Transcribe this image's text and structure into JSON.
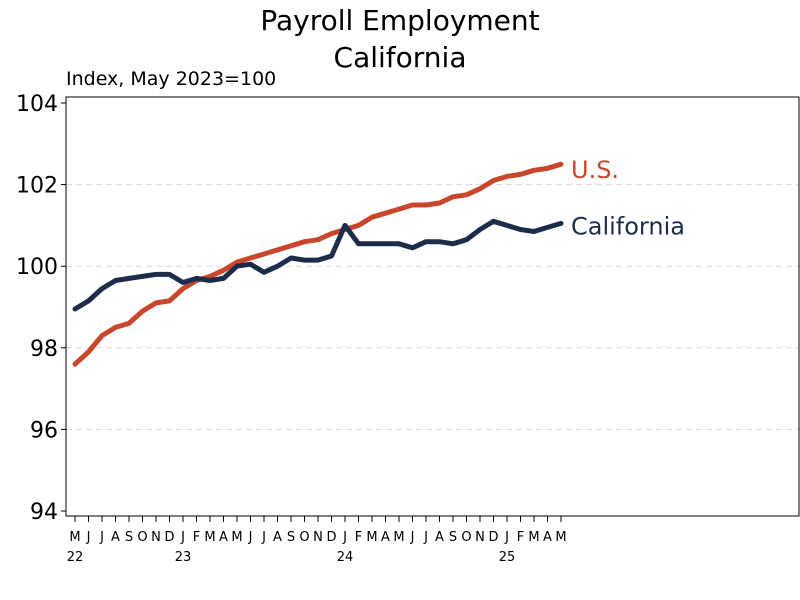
{
  "colors": {
    "us": "#c9462c",
    "california": "#1b2d4b",
    "grid": "#d9d9d9"
  },
  "chart_data": {
    "type": "line",
    "title": "Payroll Employment",
    "subtitle": "California",
    "ylabel": "Index, May 2023=100",
    "ylim": [
      94,
      104
    ],
    "yticks": [
      "94",
      "96",
      "98",
      "100",
      "102",
      "104"
    ],
    "grid": true,
    "x": [
      "May 2022",
      "Jun 2022",
      "Jul 2022",
      "Aug 2022",
      "Sep 2022",
      "Oct 2022",
      "Nov 2022",
      "Dec 2022",
      "Jan 2023",
      "Feb 2023",
      "Mar 2023",
      "Apr 2023",
      "May 2023",
      "Jun 2023",
      "Jul 2023",
      "Aug 2023",
      "Sep 2023",
      "Oct 2023",
      "Nov 2023",
      "Dec 2023",
      "Jan 2024",
      "Feb 2024",
      "Mar 2024",
      "Apr 2024",
      "May 2024",
      "Jun 2024",
      "Jul 2024",
      "Aug 2024",
      "Sep 2024",
      "Oct 2024",
      "Nov 2024",
      "Dec 2024",
      "Jan 2025",
      "Feb 2025",
      "Mar 2025",
      "Apr 2025",
      "May 2025"
    ],
    "month_labels": [
      "M",
      "J",
      "J",
      "A",
      "S",
      "O",
      "N",
      "D",
      "J",
      "F",
      "M",
      "A",
      "M",
      "J",
      "J",
      "A",
      "S",
      "O",
      "N",
      "D",
      "J",
      "F",
      "M",
      "A",
      "M",
      "J",
      "J",
      "A",
      "S",
      "O",
      "N",
      "D",
      "J",
      "F",
      "M",
      "A",
      "M"
    ],
    "year_labels": [
      {
        "index": 0,
        "label": "22"
      },
      {
        "index": 8,
        "label": "23"
      },
      {
        "index": 20,
        "label": "24"
      },
      {
        "index": 32,
        "label": "25"
      }
    ],
    "series": [
      {
        "name": "U.S.",
        "color": "#c9462c",
        "values": [
          97.6,
          97.9,
          98.3,
          98.5,
          98.6,
          98.9,
          99.1,
          99.15,
          99.45,
          99.65,
          99.75,
          99.9,
          100.1,
          100.2,
          100.3,
          100.4,
          100.5,
          100.6,
          100.65,
          100.8,
          100.9,
          101.0,
          101.2,
          101.3,
          101.4,
          101.5,
          101.5,
          101.55,
          101.7,
          101.75,
          101.9,
          102.1,
          102.2,
          102.25,
          102.35,
          102.4,
          102.5
        ]
      },
      {
        "name": "California",
        "color": "#1b2d4b",
        "values": [
          98.95,
          99.15,
          99.45,
          99.65,
          99.7,
          99.75,
          99.8,
          99.8,
          99.6,
          99.7,
          99.65,
          99.7,
          100.0,
          100.05,
          99.85,
          100.0,
          100.2,
          100.15,
          100.15,
          100.25,
          101.0,
          100.55,
          100.55,
          100.55,
          100.55,
          100.45,
          100.6,
          100.6,
          100.55,
          100.65,
          100.9,
          101.1,
          101.0,
          100.9,
          100.85,
          100.95,
          101.05
        ]
      }
    ]
  }
}
